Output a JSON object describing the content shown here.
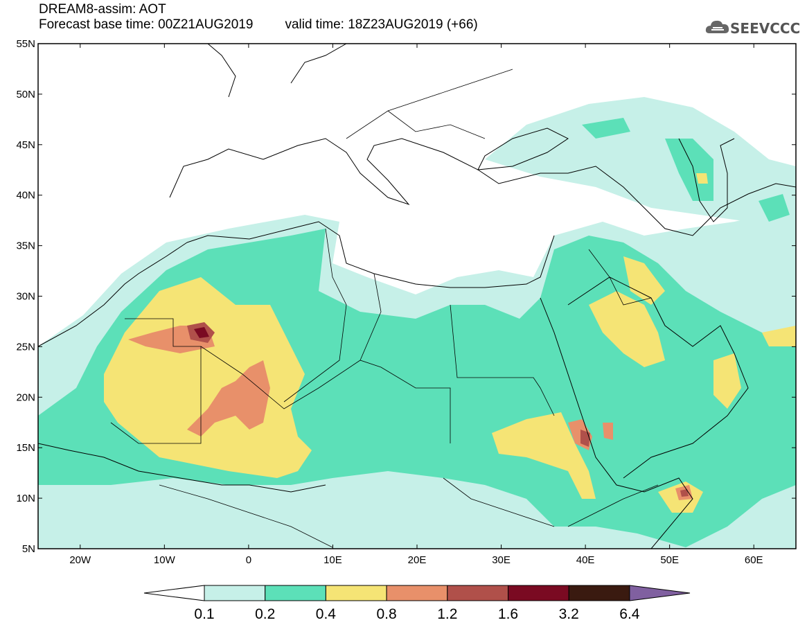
{
  "title": {
    "line1": "DREAM8-assim: AOT",
    "base_time": "Forecast base time: 00Z21AUG2019",
    "valid_time": "valid time: 18Z23AUG2019 (+66)"
  },
  "logo": {
    "text": "SEEVCCC",
    "icon": "cloud-icon"
  },
  "axes": {
    "lat_labels": [
      "55N",
      "50N",
      "45N",
      "40N",
      "35N",
      "30N",
      "25N",
      "20N",
      "15N",
      "10N",
      "5N"
    ],
    "lon_labels": [
      "20W",
      "10W",
      "0",
      "10E",
      "20E",
      "30E",
      "40E",
      "50E",
      "60E"
    ],
    "lat_range": [
      5,
      55
    ],
    "lon_range": [
      -25,
      65
    ]
  },
  "colorbar": {
    "labels": [
      "0.1",
      "0.2",
      "0.4",
      "0.8",
      "1.2",
      "1.6",
      "3.2",
      "6.4"
    ],
    "colors": [
      "#ffffff",
      "#c6f0e8",
      "#5ce0b8",
      "#f5e475",
      "#e8906a",
      "#b0504a",
      "#7a0a22",
      "#3a1a10",
      "#8060a0"
    ]
  }
}
